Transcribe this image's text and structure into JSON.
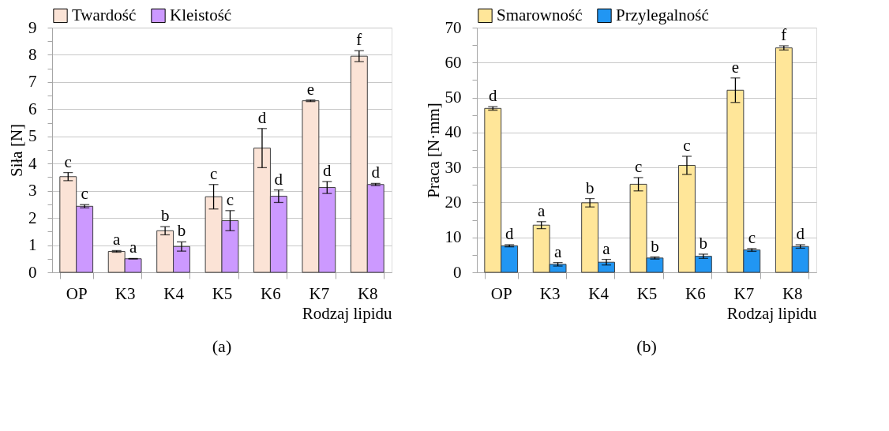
{
  "chart_data": [
    {
      "type": "bar",
      "ylabel": "Siła [N]",
      "xlabel": "Rodzaj lipidu",
      "categories": [
        "OP",
        "K3",
        "K4",
        "K5",
        "K6",
        "K7",
        "K8"
      ],
      "ylim": [
        0,
        9
      ],
      "yticks": [
        0,
        {
          "value": 0.5,
          "label": null
        },
        1,
        {
          "value": 1.5,
          "label": null
        },
        2,
        {
          "value": 2.5,
          "label": null
        },
        3,
        {
          "value": 3.5,
          "label": null
        },
        4,
        {
          "value": 4.5,
          "label": null
        },
        5,
        {
          "value": 5.5,
          "label": null
        },
        6,
        {
          "value": 6.5,
          "label": null
        },
        7,
        {
          "value": 7.5,
          "label": null
        },
        8,
        {
          "value": 8.5,
          "label": null
        },
        9
      ],
      "grid": "y",
      "legend": "top",
      "annotations": [
        "(a)"
      ],
      "series": [
        {
          "name": "Twardość",
          "color": "#fbe3d6",
          "values": [
            3.52,
            0.77,
            1.53,
            2.78,
            4.57,
            6.31,
            7.95
          ],
          "errors": [
            0.15,
            0.03,
            0.15,
            0.45,
            0.72,
            0.03,
            0.2
          ],
          "value_labels": [
            "c",
            "a",
            "b",
            "c",
            "d",
            "e",
            "f"
          ]
        },
        {
          "name": "Kleistość",
          "color": "#cc99ff",
          "values": [
            2.43,
            0.5,
            0.95,
            1.9,
            2.8,
            3.12,
            3.23
          ],
          "errors": [
            0.06,
            0.01,
            0.17,
            0.37,
            0.23,
            0.22,
            0.04
          ],
          "value_labels": [
            "c",
            "a",
            "b",
            "c",
            "d",
            "d",
            "d"
          ]
        }
      ]
    },
    {
      "type": "bar",
      "ylabel": "Praca [N·mm]",
      "xlabel": "Rodzaj lipidu",
      "categories": [
        "OP",
        "K3",
        "K4",
        "K5",
        "K6",
        "K7",
        "K8"
      ],
      "ylim": [
        0,
        70
      ],
      "yticks": [
        0,
        {
          "value": 5,
          "label": null
        },
        10,
        {
          "value": 15,
          "label": null
        },
        20,
        {
          "value": 25,
          "label": null
        },
        30,
        {
          "value": 35,
          "label": null
        },
        40,
        {
          "value": 45,
          "label": null
        },
        50,
        {
          "value": 55,
          "label": null
        },
        60,
        {
          "value": 65,
          "label": null
        },
        70
      ],
      "grid": "y",
      "legend": "top",
      "annotations": [
        "(b)"
      ],
      "series": [
        {
          "name": "Smarowność",
          "color": "#ffe699",
          "values": [
            46.9,
            13.5,
            19.9,
            25.2,
            30.6,
            52.1,
            64.2
          ],
          "errors": [
            0.5,
            1.0,
            1.2,
            1.9,
            2.6,
            3.5,
            0.6
          ],
          "value_labels": [
            "d",
            "a",
            "b",
            "c",
            "c",
            "e",
            "f"
          ]
        },
        {
          "name": "Przylegalność",
          "color": "#2196f3",
          "values": [
            7.6,
            2.3,
            2.9,
            4.1,
            4.6,
            6.4,
            7.4
          ],
          "errors": [
            0.3,
            0.5,
            0.8,
            0.3,
            0.6,
            0.4,
            0.5
          ],
          "value_labels": [
            "d",
            "a",
            "a",
            "b",
            "b",
            "c",
            "d"
          ]
        }
      ]
    }
  ]
}
